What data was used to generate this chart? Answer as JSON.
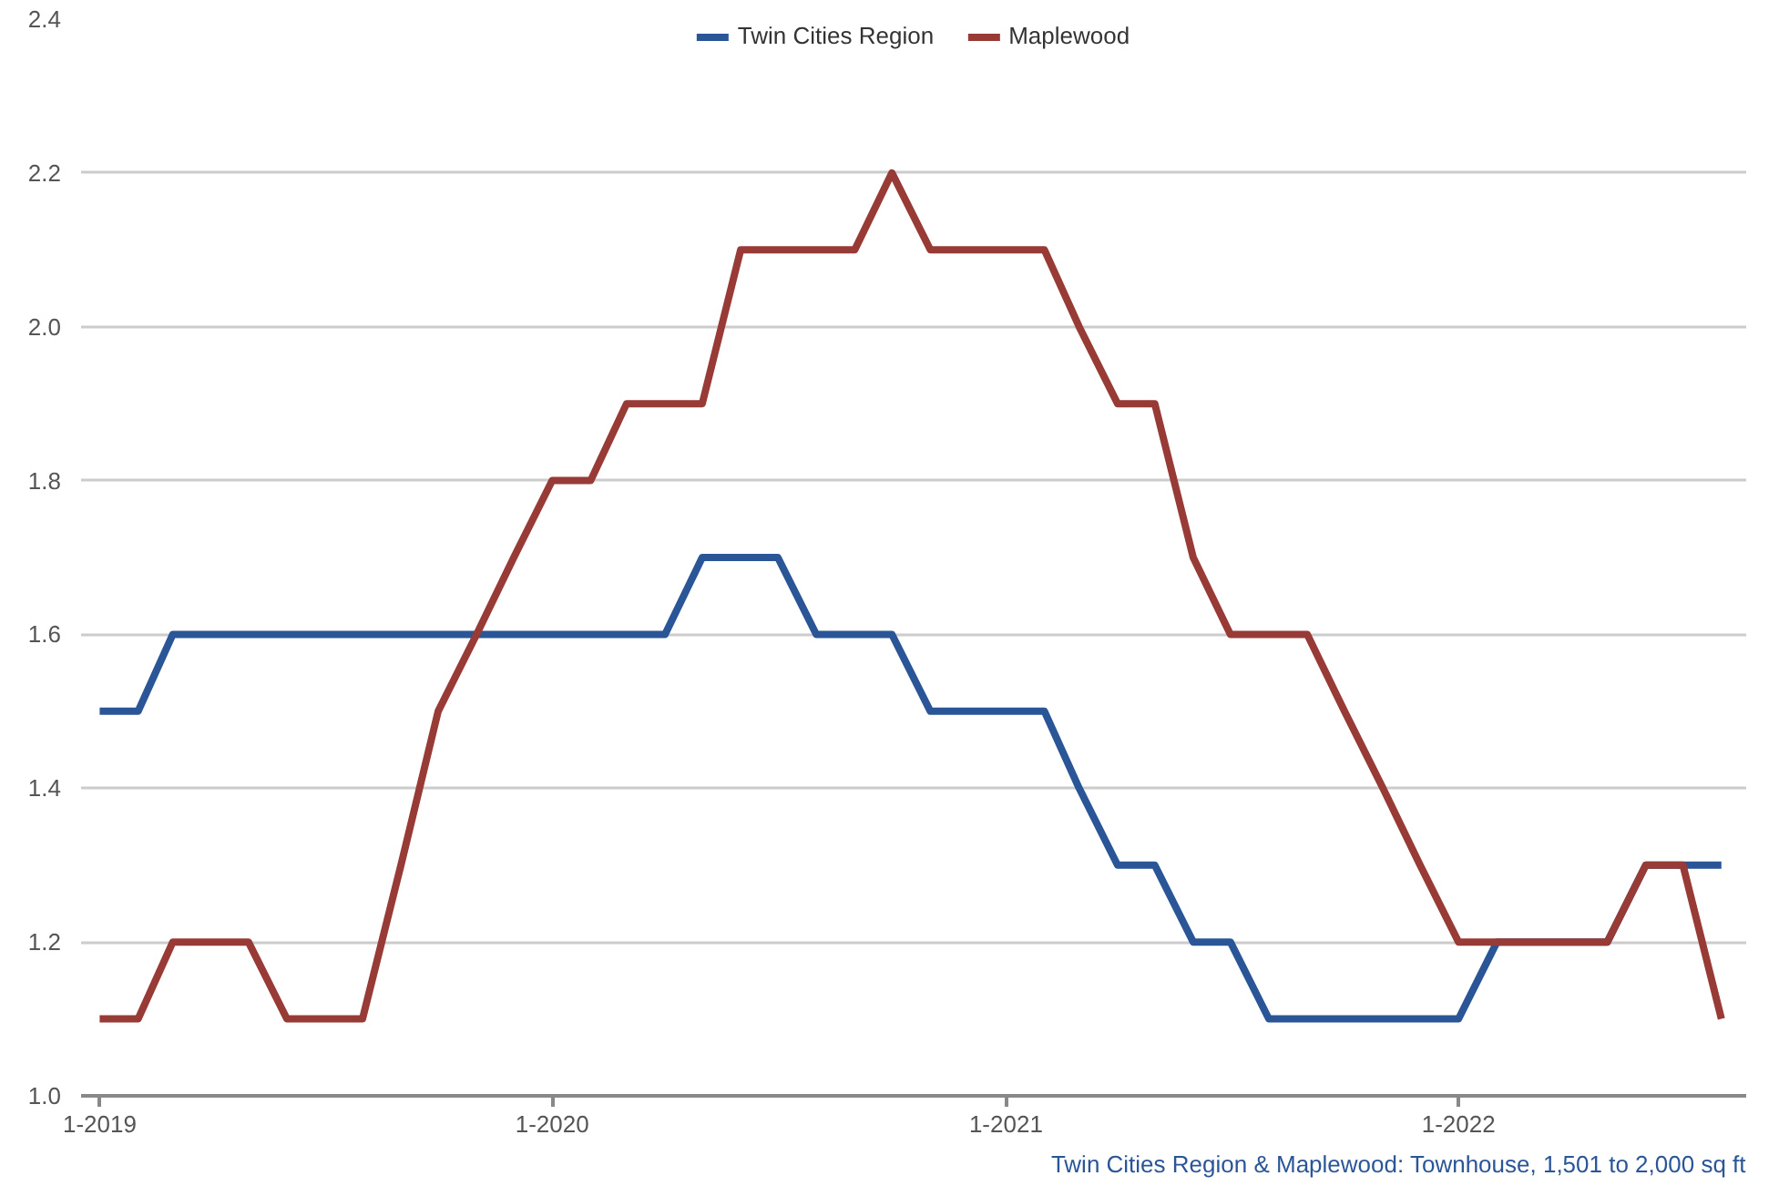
{
  "chart_data": {
    "type": "line",
    "x": [
      "2019-01",
      "2019-02",
      "2019-03",
      "2019-04",
      "2019-05",
      "2019-06",
      "2019-07",
      "2019-08",
      "2019-09",
      "2019-10",
      "2019-11",
      "2019-12",
      "2020-01",
      "2020-02",
      "2020-03",
      "2020-04",
      "2020-05",
      "2020-06",
      "2020-07",
      "2020-08",
      "2020-09",
      "2020-10",
      "2020-11",
      "2020-12",
      "2021-01",
      "2021-02",
      "2021-03",
      "2021-04",
      "2021-05",
      "2021-06",
      "2021-07",
      "2021-08",
      "2021-09",
      "2021-10",
      "2021-11",
      "2021-12",
      "2022-01",
      "2022-02",
      "2022-03",
      "2022-04",
      "2022-05",
      "2022-06",
      "2022-07",
      "2022-08"
    ],
    "series": [
      {
        "name": "Twin Cities Region",
        "color": "#2a5597",
        "values": [
          1.5,
          1.5,
          1.6,
          1.6,
          1.6,
          1.6,
          1.6,
          1.6,
          1.6,
          1.6,
          1.6,
          1.6,
          1.6,
          1.6,
          1.6,
          1.6,
          1.7,
          1.7,
          1.7,
          1.6,
          1.6,
          1.6,
          1.5,
          1.5,
          1.5,
          1.5,
          1.4,
          1.3,
          1.3,
          1.2,
          1.2,
          1.1,
          1.1,
          1.1,
          1.1,
          1.1,
          1.1,
          1.2,
          1.2,
          1.2,
          1.2,
          1.3,
          1.3,
          1.3
        ]
      },
      {
        "name": "Maplewood",
        "color": "#983a35",
        "values": [
          1.1,
          1.1,
          1.2,
          1.2,
          1.2,
          1.1,
          1.1,
          1.1,
          1.3,
          1.5,
          1.6,
          1.7,
          1.8,
          1.8,
          1.9,
          1.9,
          1.9,
          2.1,
          2.1,
          2.1,
          2.1,
          2.2,
          2.1,
          2.1,
          2.1,
          2.1,
          2.0,
          1.9,
          1.9,
          1.7,
          1.6,
          1.6,
          1.6,
          1.5,
          1.4,
          1.3,
          1.2,
          1.2,
          1.2,
          1.2,
          1.2,
          1.3,
          1.3,
          1.1
        ]
      }
    ],
    "xlim": [
      "2018-12-17",
      "2022-08-21"
    ],
    "xticks": [
      {
        "value": "2019-01",
        "label": "1-2019"
      },
      {
        "value": "2020-01",
        "label": "1-2020"
      },
      {
        "value": "2021-01",
        "label": "1-2021"
      },
      {
        "value": "2022-01",
        "label": "1-2022"
      }
    ],
    "ylim": [
      1.0,
      2.4
    ],
    "yticks": [
      {
        "value": 1.0,
        "label": "1.0"
      },
      {
        "value": 1.2,
        "label": "1.2"
      },
      {
        "value": 1.4,
        "label": "1.4"
      },
      {
        "value": 1.6,
        "label": "1.6"
      },
      {
        "value": 1.8,
        "label": "1.8"
      },
      {
        "value": 2.0,
        "label": "2.0"
      },
      {
        "value": 2.2,
        "label": "2.2"
      },
      {
        "value": 2.4,
        "label": "2.4"
      }
    ],
    "grid": "y",
    "legend": "top",
    "marker": "none",
    "line_style": "solid",
    "annotations": [
      "Twin Cities Region & Maplewood: Townhouse, 1,501 to 2,000 sq ft"
    ]
  }
}
